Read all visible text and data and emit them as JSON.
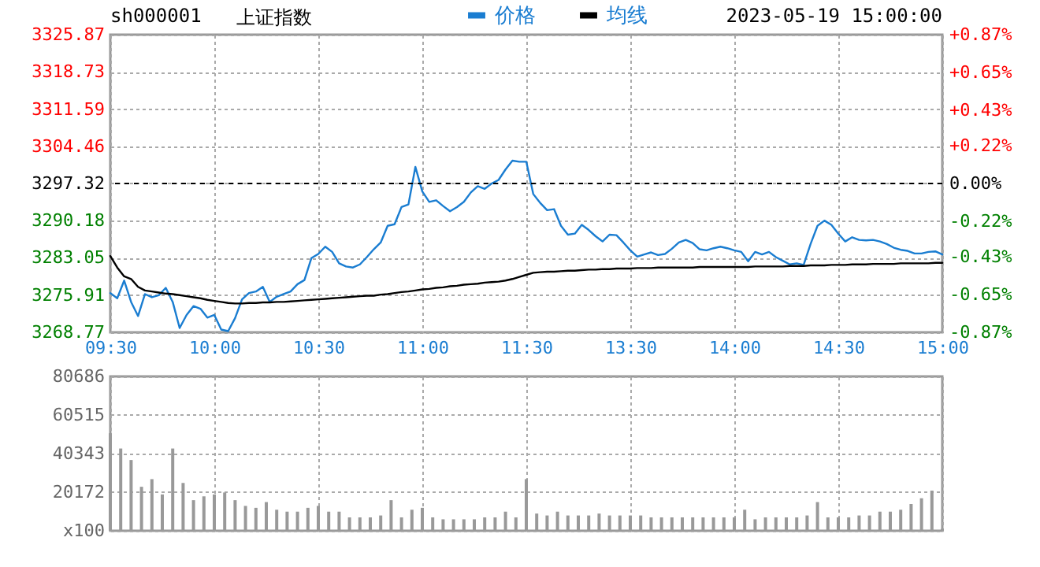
{
  "chart_data": [
    {
      "type": "line",
      "title": "上证指数",
      "subtitle": "sh000001",
      "annotations": [
        "2023-05-19 15:00:00"
      ],
      "categories": [
        "09:30",
        null,
        null,
        null,
        null,
        null,
        null,
        null,
        null,
        null,
        null,
        null,
        null,
        null,
        null,
        "10:00",
        null,
        null,
        null,
        null,
        null,
        null,
        null,
        null,
        null,
        null,
        null,
        null,
        null,
        null,
        "10:30",
        null,
        null,
        null,
        null,
        null,
        null,
        null,
        null,
        null,
        null,
        null,
        null,
        null,
        null,
        "11:00",
        null,
        null,
        null,
        null,
        null,
        null,
        null,
        null,
        null,
        null,
        null,
        null,
        null,
        null,
        "11:30",
        null,
        null,
        null,
        null,
        null,
        null,
        null,
        null,
        null,
        null,
        null,
        null,
        null,
        null,
        "13:30",
        null,
        null,
        null,
        null,
        null,
        null,
        null,
        null,
        null,
        null,
        null,
        null,
        null,
        null,
        "14:00",
        null,
        null,
        null,
        null,
        null,
        null,
        null,
        null,
        null,
        null,
        null,
        null,
        null,
        null,
        "14:30",
        null,
        null,
        null,
        null,
        null,
        null,
        null,
        null,
        null,
        null,
        null,
        null,
        null,
        null,
        "15:00"
      ],
      "ylim": [
        3268.77,
        3325.87
      ],
      "yticks": [
        3268.77,
        3275.91,
        3283.05,
        3290.18,
        3297.32,
        3304.46,
        3311.59,
        3318.73,
        3325.87
      ],
      "y2lim": [
        -0.87,
        0.87
      ],
      "y2ticks": [
        {
          "value": -0.87,
          "label": "-0.87%"
        },
        {
          "value": -0.65,
          "label": "-0.65%"
        },
        {
          "value": -0.43,
          "label": "-0.43%"
        },
        {
          "value": -0.22,
          "label": "-0.22%"
        },
        {
          "value": 0,
          "label": "0.00%"
        },
        {
          "value": 0.22,
          "label": "+0.22%"
        },
        {
          "value": 0.43,
          "label": "+0.43%"
        },
        {
          "value": 0.65,
          "label": "+0.65%"
        },
        {
          "value": 0.87,
          "label": "+0.87%"
        }
      ],
      "ref_lines": [
        {
          "axis": "y2",
          "value": 0,
          "color": "#000000",
          "line_style": "dashed"
        }
      ],
      "grid": true,
      "legend": "top",
      "marker": "none",
      "line_style": "solid",
      "series": [
        {
          "name": "价格",
          "color": "#1a7dd1",
          "values": [
            3276.3,
            3275.3,
            3278.7,
            3274.6,
            3271.9,
            3276.1,
            3275.5,
            3275.9,
            3277.3,
            3274.6,
            3269.6,
            3272.1,
            3273.8,
            3273.3,
            3271.6,
            3272.1,
            3269.3,
            3269.0,
            3271.5,
            3275.1,
            3276.3,
            3276.6,
            3277.5,
            3274.6,
            3275.6,
            3276.1,
            3276.6,
            3278.0,
            3278.8,
            3283.0,
            3283.8,
            3285.2,
            3284.2,
            3282.0,
            3281.4,
            3281.2,
            3281.8,
            3283.2,
            3284.7,
            3286.0,
            3289.2,
            3289.5,
            3292.8,
            3293.3,
            3300.5,
            3295.8,
            3293.8,
            3294.1,
            3293.0,
            3292.0,
            3292.8,
            3293.8,
            3295.6,
            3296.8,
            3296.3,
            3297.3,
            3298.0,
            3300.0,
            3301.7,
            3301.5,
            3301.5,
            3295.3,
            3293.6,
            3292.2,
            3292.4,
            3289.2,
            3287.5,
            3287.7,
            3289.4,
            3288.4,
            3287.2,
            3286.2,
            3287.5,
            3287.4,
            3286.0,
            3284.5,
            3283.3,
            3283.7,
            3284.1,
            3283.6,
            3283.8,
            3284.8,
            3286.0,
            3286.5,
            3285.9,
            3284.7,
            3284.5,
            3284.9,
            3285.2,
            3284.9,
            3284.5,
            3284.2,
            3282.4,
            3284.2,
            3283.7,
            3284.2,
            3283.2,
            3282.5,
            3281.8,
            3282.0,
            3281.7,
            3285.7,
            3289.2,
            3290.2,
            3289.4,
            3287.7,
            3286.2,
            3287.0,
            3286.5,
            3286.4,
            3286.5,
            3286.2,
            3285.7,
            3285.0,
            3284.6,
            3284.4,
            3283.9,
            3283.9,
            3284.2,
            3284.3,
            3283.7
          ]
        },
        {
          "name": "均线",
          "color": "#000000",
          "values": [
            3283.4,
            3281.2,
            3279.5,
            3279.0,
            3277.5,
            3276.8,
            3276.6,
            3276.4,
            3276.2,
            3276.1,
            3275.9,
            3275.7,
            3275.5,
            3275.3,
            3275.0,
            3274.8,
            3274.6,
            3274.4,
            3274.3,
            3274.3,
            3274.4,
            3274.4,
            3274.5,
            3274.5,
            3274.6,
            3274.6,
            3274.7,
            3274.8,
            3274.9,
            3275.0,
            3275.1,
            3275.2,
            3275.3,
            3275.4,
            3275.5,
            3275.6,
            3275.7,
            3275.8,
            3275.8,
            3276.0,
            3276.1,
            3276.3,
            3276.5,
            3276.6,
            3276.8,
            3277.0,
            3277.1,
            3277.3,
            3277.4,
            3277.6,
            3277.7,
            3277.9,
            3278.0,
            3278.1,
            3278.3,
            3278.4,
            3278.5,
            3278.7,
            3279.0,
            3279.4,
            3279.8,
            3280.2,
            3280.3,
            3280.4,
            3280.4,
            3280.5,
            3280.6,
            3280.6,
            3280.7,
            3280.8,
            3280.8,
            3280.9,
            3280.9,
            3281.0,
            3281.0,
            3281.0,
            3281.1,
            3281.1,
            3281.1,
            3281.2,
            3281.2,
            3281.2,
            3281.2,
            3281.2,
            3281.2,
            3281.3,
            3281.3,
            3281.3,
            3281.3,
            3281.3,
            3281.3,
            3281.3,
            3281.3,
            3281.4,
            3281.4,
            3281.4,
            3281.4,
            3281.4,
            3281.5,
            3281.5,
            3281.5,
            3281.6,
            3281.6,
            3281.6,
            3281.7,
            3281.7,
            3281.7,
            3281.8,
            3281.8,
            3281.8,
            3281.9,
            3281.9,
            3281.9,
            3281.9,
            3282.0,
            3282.0,
            3282.0,
            3282.0,
            3282.0,
            3282.1,
            3282.1
          ]
        }
      ]
    },
    {
      "type": "bar",
      "categories": [
        null,
        null,
        null,
        null,
        null,
        null,
        null,
        null,
        null,
        null,
        null,
        null,
        null,
        null,
        null,
        null,
        null,
        null,
        null,
        null,
        null,
        null,
        null,
        null,
        null,
        null,
        null,
        null,
        null,
        null,
        null,
        null,
        null,
        null,
        null,
        null,
        null,
        null,
        null,
        null,
        null,
        null,
        null,
        null,
        null,
        null,
        null,
        null,
        null,
        null,
        null,
        null,
        null,
        null,
        null,
        null,
        null,
        null,
        null,
        null,
        null,
        null,
        null,
        null,
        null,
        null,
        null,
        null,
        null,
        null,
        null,
        null,
        null,
        null,
        null,
        null,
        null,
        null,
        null,
        null,
        null
      ],
      "ylim": [
        0,
        80686
      ],
      "yticks": [
        {
          "value": 0,
          "label": "x100"
        },
        20172,
        40343,
        60515,
        80686
      ],
      "grid": true,
      "tick_labels": "y",
      "series": [
        {
          "color": "#999999",
          "values": [
            51000,
            43000,
            37000,
            23000,
            27000,
            19000,
            43000,
            25000,
            16000,
            18000,
            19000,
            20000,
            16000,
            13000,
            12000,
            15000,
            11000,
            10000,
            10000,
            12000,
            13000,
            10000,
            10000,
            7000,
            7000,
            7000,
            8000,
            16000,
            7000,
            11000,
            12000,
            7000,
            6000,
            6000,
            6000,
            6000,
            7000,
            7000,
            10000,
            7000,
            27000,
            9000,
            8000,
            10000,
            8000,
            8000,
            8000,
            9000,
            8000,
            8000,
            8000,
            8000,
            7000,
            7000,
            7000,
            7000,
            7000,
            7000,
            7000,
            7000,
            7000,
            11000,
            6000,
            7000,
            7000,
            7000,
            7000,
            8000,
            15000,
            7000,
            7000,
            7000,
            8000,
            8000,
            10000,
            10000,
            11000,
            14000,
            17000,
            21000,
            1000
          ]
        }
      ]
    }
  ]
}
